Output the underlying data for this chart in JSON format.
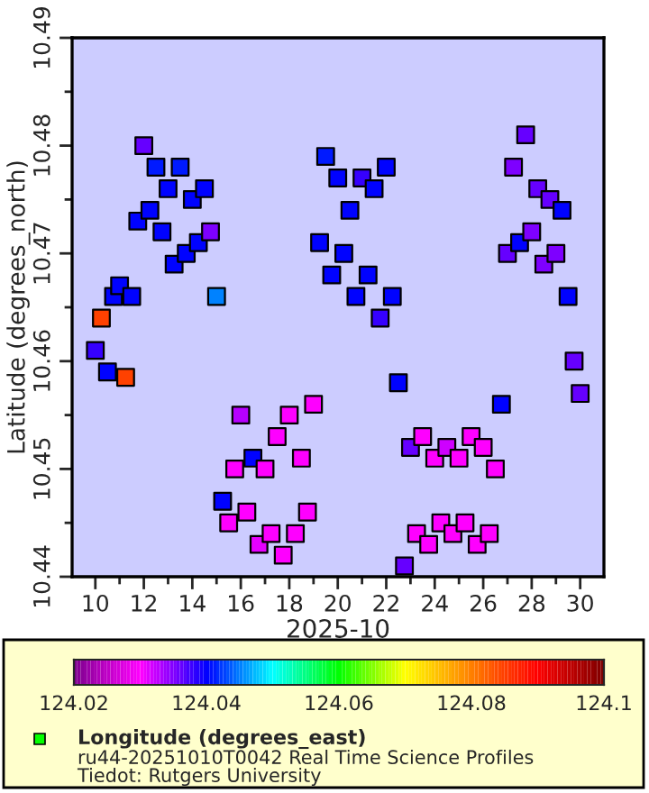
{
  "chart_data": {
    "type": "scatter",
    "xlabel": "2025-10",
    "ylabel": "Latitude (degrees_north)",
    "clabel": "Longitude (degrees_east)",
    "annotations": [
      "ru44-20251010T0042 Real Time Science Profiles",
      "Tiedot: Rutgers University"
    ],
    "marker": "square",
    "grid": false,
    "legend": false,
    "x": [
      "2025-10-10T00:00",
      "2025-10-10T06:00",
      "2025-10-10T12:00",
      "2025-10-10T18:00",
      "2025-10-11T00:00",
      "2025-10-11T06:00",
      "2025-10-11T12:00",
      "2025-10-11T18:00",
      "2025-10-12T00:00",
      "2025-10-12T06:00",
      "2025-10-12T12:00",
      "2025-10-12T18:00",
      "2025-10-13T00:00",
      "2025-10-13T06:00",
      "2025-10-13T12:00",
      "2025-10-13T18:00",
      "2025-10-14T00:00",
      "2025-10-14T06:00",
      "2025-10-14T12:00",
      "2025-10-14T18:00",
      "2025-10-15T00:00",
      "2025-10-15T06:00",
      "2025-10-15T12:00",
      "2025-10-15T18:00",
      "2025-10-16T00:00",
      "2025-10-16T06:00",
      "2025-10-16T12:00",
      "2025-10-16T18:00",
      "2025-10-17T00:00",
      "2025-10-17T06:00",
      "2025-10-17T12:00",
      "2025-10-17T18:00",
      "2025-10-18T00:00",
      "2025-10-18T06:00",
      "2025-10-18T12:00",
      "2025-10-18T18:00",
      "2025-10-19T00:00",
      "2025-10-19T06:00",
      "2025-10-19T12:00",
      "2025-10-19T18:00",
      "2025-10-20T00:00",
      "2025-10-20T06:00",
      "2025-10-20T12:00",
      "2025-10-20T18:00",
      "2025-10-21T00:00",
      "2025-10-21T06:00",
      "2025-10-21T12:00",
      "2025-10-21T18:00",
      "2025-10-22T00:00",
      "2025-10-22T06:00",
      "2025-10-22T12:00",
      "2025-10-22T18:00",
      "2025-10-23T00:00",
      "2025-10-23T06:00",
      "2025-10-23T12:00",
      "2025-10-23T18:00",
      "2025-10-24T00:00",
      "2025-10-24T06:00",
      "2025-10-24T12:00",
      "2025-10-24T18:00",
      "2025-10-25T00:00",
      "2025-10-25T06:00",
      "2025-10-25T12:00",
      "2025-10-25T18:00",
      "2025-10-26T00:00",
      "2025-10-26T06:00",
      "2025-10-26T12:00",
      "2025-10-26T18:00",
      "2025-10-27T00:00",
      "2025-10-27T06:00",
      "2025-10-27T12:00",
      "2025-10-27T18:00",
      "2025-10-28T00:00",
      "2025-10-28T06:00",
      "2025-10-28T12:00",
      "2025-10-28T18:00",
      "2025-10-29T00:00",
      "2025-10-29T06:00",
      "2025-10-29T12:00",
      "2025-10-29T18:00",
      "2025-10-30T00:00"
    ],
    "values": [
      10.461,
      10.464,
      10.459,
      10.466,
      10.467,
      10.4585,
      10.466,
      10.473,
      10.48,
      10.474,
      10.478,
      10.472,
      10.476,
      10.469,
      10.478,
      10.47,
      10.475,
      10.471,
      10.476,
      10.472,
      10.466,
      10.447,
      10.445,
      10.45,
      10.455,
      10.446,
      10.451,
      10.443,
      10.45,
      10.444,
      10.453,
      10.442,
      10.455,
      10.444,
      10.451,
      10.446,
      10.456,
      10.471,
      10.479,
      10.468,
      10.477,
      10.47,
      10.474,
      10.466,
      10.477,
      10.468,
      10.476,
      10.464,
      10.478,
      10.466,
      10.458,
      10.441,
      10.452,
      10.444,
      10.453,
      10.443,
      10.451,
      10.445,
      10.452,
      10.444,
      10.451,
      10.445,
      10.453,
      10.443,
      10.452,
      10.444,
      10.45,
      10.456,
      10.47,
      10.478,
      10.471,
      10.481,
      10.472,
      10.476,
      10.469,
      10.475,
      10.47,
      10.474,
      10.466,
      10.46,
      10.457
    ],
    "cvalues": [
      124.038,
      124.085,
      124.04,
      124.04,
      124.04,
      124.085,
      124.04,
      124.04,
      124.036,
      124.04,
      124.041,
      124.04,
      124.04,
      124.04,
      124.041,
      124.04,
      124.04,
      124.04,
      124.04,
      124.035,
      124.045,
      124.04,
      124.03,
      124.03,
      124.033,
      124.03,
      124.04,
      124.031,
      124.03,
      124.03,
      124.03,
      124.03,
      124.03,
      124.03,
      124.03,
      124.03,
      124.03,
      124.04,
      124.041,
      124.04,
      124.04,
      124.04,
      124.04,
      124.04,
      124.038,
      124.04,
      124.04,
      124.038,
      124.04,
      124.04,
      124.04,
      124.036,
      124.036,
      124.03,
      124.03,
      124.03,
      124.03,
      124.03,
      124.032,
      124.03,
      124.03,
      124.03,
      124.03,
      124.03,
      124.03,
      124.03,
      124.03,
      124.04,
      124.036,
      124.035,
      124.04,
      124.036,
      124.035,
      124.036,
      124.035,
      124.036,
      124.035,
      124.04,
      124.04,
      124.036,
      124.036
    ],
    "xlim": [
      "2025-10-09T01:00",
      "2025-10-30T23:30"
    ],
    "xticks": [
      {
        "value": "2025-10-10",
        "label": "10"
      },
      {
        "value": "2025-10-11",
        "label": null
      },
      {
        "value": "2025-10-12",
        "label": "12"
      },
      {
        "value": "2025-10-13",
        "label": null
      },
      {
        "value": "2025-10-14",
        "label": "14"
      },
      {
        "value": "2025-10-15",
        "label": null
      },
      {
        "value": "2025-10-16",
        "label": "16"
      },
      {
        "value": "2025-10-17",
        "label": null
      },
      {
        "value": "2025-10-18",
        "label": "18"
      },
      {
        "value": "2025-10-19",
        "label": null
      },
      {
        "value": "2025-10-20",
        "label": "20"
      },
      {
        "value": "2025-10-21",
        "label": null
      },
      {
        "value": "2025-10-22",
        "label": "22"
      },
      {
        "value": "2025-10-23",
        "label": null
      },
      {
        "value": "2025-10-24",
        "label": "24"
      },
      {
        "value": "2025-10-25",
        "label": null
      },
      {
        "value": "2025-10-26",
        "label": "26"
      },
      {
        "value": "2025-10-27",
        "label": null
      },
      {
        "value": "2025-10-28",
        "label": "28"
      },
      {
        "value": "2025-10-29",
        "label": null
      },
      {
        "value": "2025-10-30",
        "label": "30"
      }
    ],
    "ylim": [
      10.44,
      10.49
    ],
    "yticks": [
      10.44,
      {
        "value": 10.445,
        "label": null
      },
      10.45,
      {
        "value": 10.455,
        "label": null
      },
      10.46,
      {
        "value": 10.465,
        "label": null
      },
      10.47,
      {
        "value": 10.475,
        "label": null
      },
      10.48,
      {
        "value": 10.485,
        "label": null
      },
      10.49
    ],
    "clim": [
      124.02,
      124.1
    ],
    "cticks": [
      124.02,
      124.04,
      124.06,
      124.08,
      124.1
    ]
  }
}
